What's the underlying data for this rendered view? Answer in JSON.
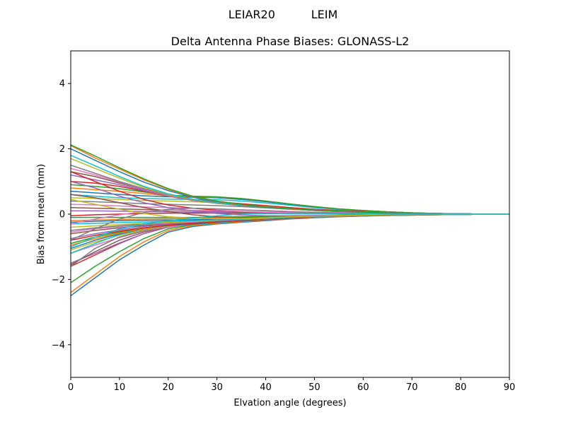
{
  "suptitle": "LEIAR20          LEIM",
  "chart_data": {
    "type": "line",
    "title": "Delta Antenna Phase Biases: GLONASS-L2",
    "xlabel": "Elvation angle (degrees)",
    "ylabel": "Bias from mean (mm)",
    "xlim": [
      0,
      90
    ],
    "ylim": [
      -5,
      5
    ],
    "xticks": [
      0,
      10,
      20,
      30,
      40,
      50,
      60,
      70,
      80,
      90
    ],
    "yticks": [
      -4,
      -2,
      0,
      2,
      4
    ],
    "ytick_labels": [
      "−4",
      "−2",
      "0",
      "2",
      "4"
    ],
    "grid": false,
    "legend": "none",
    "x": [
      0,
      5,
      10,
      15,
      20,
      25,
      30,
      35,
      40,
      45,
      50,
      55,
      60,
      65,
      70,
      75,
      80,
      85,
      90
    ],
    "color_cycle": [
      "#1f77b4",
      "#ff7f0e",
      "#2ca02c",
      "#d62728",
      "#9467bd",
      "#8c564b",
      "#e377c2",
      "#7f7f7f",
      "#bcbd22",
      "#17becf"
    ],
    "series": [
      {
        "values": [
          -2.5,
          -1.95,
          -1.4,
          -0.95,
          -0.55,
          -0.38,
          -0.3,
          -0.25,
          -0.2,
          -0.15,
          -0.11,
          -0.08,
          -0.06,
          -0.04,
          -0.03,
          -0.02,
          -0.01,
          0,
          0
        ]
      },
      {
        "values": [
          -2.4,
          -1.85,
          -1.3,
          -0.85,
          -0.5,
          -0.35,
          -0.28,
          -0.23,
          -0.18,
          -0.14,
          -0.1,
          -0.07,
          -0.05,
          -0.04,
          -0.03,
          -0.02,
          -0.01,
          0,
          0
        ]
      },
      {
        "values": [
          -2.1,
          -1.6,
          -1.15,
          -0.75,
          -0.45,
          -0.32,
          -0.26,
          -0.21,
          -0.17,
          -0.13,
          -0.1,
          -0.07,
          -0.05,
          -0.04,
          -0.03,
          -0.02,
          -0.01,
          0,
          0
        ]
      },
      {
        "values": [
          -1.6,
          -1.25,
          -0.9,
          -0.6,
          -0.38,
          -0.28,
          -0.23,
          -0.19,
          -0.15,
          -0.12,
          -0.09,
          -0.06,
          -0.05,
          -0.03,
          -0.02,
          -0.01,
          -0.01,
          0,
          0
        ]
      },
      {
        "values": [
          -1.5,
          -1.2,
          -0.88,
          -0.6,
          -0.4,
          -0.3,
          -0.24,
          -0.2,
          -0.16,
          -0.12,
          -0.09,
          -0.07,
          -0.05,
          -0.03,
          -0.02,
          -0.01,
          -0.01,
          0,
          0
        ]
      },
      {
        "values": [
          -1.55,
          -1.15,
          -0.8,
          -0.55,
          -0.38,
          -0.3,
          -0.25,
          -0.21,
          -0.17,
          -0.13,
          -0.1,
          -0.07,
          -0.05,
          -0.04,
          -0.03,
          -0.02,
          -0.01,
          0,
          0
        ]
      },
      {
        "values": [
          -1.2,
          -0.95,
          -0.72,
          -0.52,
          -0.38,
          -0.3,
          -0.25,
          -0.2,
          -0.16,
          -0.12,
          -0.09,
          -0.06,
          -0.05,
          -0.03,
          -0.02,
          -0.01,
          -0.01,
          0,
          0
        ]
      },
      {
        "values": [
          -1.6,
          -1.05,
          -0.7,
          -0.5,
          -0.36,
          -0.28,
          -0.24,
          -0.2,
          -0.16,
          -0.12,
          -0.09,
          -0.07,
          -0.05,
          -0.03,
          -0.02,
          -0.01,
          -0.01,
          0,
          0
        ]
      },
      {
        "values": [
          -1.1,
          -0.85,
          -0.65,
          -0.48,
          -0.36,
          -0.28,
          -0.23,
          -0.19,
          -0.15,
          -0.12,
          -0.09,
          -0.06,
          -0.05,
          -0.03,
          -0.02,
          -0.01,
          -0.01,
          0,
          0
        ]
      },
      {
        "values": [
          -1.2,
          -0.9,
          -0.62,
          -0.45,
          -0.34,
          -0.27,
          -0.22,
          -0.18,
          -0.14,
          -0.11,
          -0.08,
          -0.06,
          -0.04,
          -0.03,
          -0.02,
          -0.01,
          -0.01,
          0,
          0
        ]
      },
      {
        "values": [
          -1.05,
          -0.8,
          -0.6,
          -0.45,
          -0.35,
          -0.3,
          -0.25,
          -0.2,
          -0.16,
          -0.12,
          -0.09,
          -0.06,
          -0.05,
          -0.03,
          -0.02,
          -0.01,
          -0.01,
          0,
          0
        ]
      },
      {
        "values": [
          -0.95,
          -0.75,
          -0.58,
          -0.44,
          -0.34,
          -0.28,
          -0.23,
          -0.19,
          -0.15,
          -0.12,
          -0.09,
          -0.06,
          -0.05,
          -0.03,
          -0.02,
          -0.01,
          -0.01,
          0,
          0
        ]
      },
      {
        "values": [
          -0.9,
          -0.7,
          -0.55,
          -0.42,
          -0.33,
          -0.27,
          -0.22,
          -0.18,
          -0.14,
          -0.11,
          -0.08,
          -0.06,
          -0.04,
          -0.03,
          -0.02,
          -0.01,
          -0.01,
          0,
          0
        ]
      },
      {
        "values": [
          -0.8,
          -0.65,
          -0.52,
          -0.42,
          -0.34,
          -0.28,
          -0.23,
          -0.19,
          -0.15,
          -0.12,
          -0.09,
          -0.06,
          -0.05,
          -0.03,
          -0.02,
          -0.01,
          -0.01,
          0,
          0
        ]
      },
      {
        "values": [
          -0.75,
          -0.6,
          -0.48,
          -0.38,
          -0.3,
          -0.25,
          -0.21,
          -0.17,
          -0.14,
          -0.11,
          -0.08,
          -0.06,
          -0.04,
          -0.03,
          -0.02,
          -0.01,
          -0.01,
          0,
          0
        ]
      },
      {
        "values": [
          -0.6,
          -0.5,
          -0.42,
          -0.35,
          -0.29,
          -0.25,
          -0.21,
          -0.17,
          -0.14,
          -0.11,
          -0.08,
          -0.06,
          -0.04,
          -0.03,
          -0.02,
          -0.01,
          -0.01,
          0,
          0
        ]
      },
      {
        "values": [
          -0.55,
          -0.45,
          -0.38,
          -0.32,
          -0.28,
          -0.24,
          -0.2,
          -0.16,
          -0.13,
          -0.1,
          -0.08,
          -0.06,
          -0.04,
          -0.03,
          -0.02,
          -0.01,
          -0.01,
          0,
          0
        ]
      },
      {
        "values": [
          -0.5,
          -0.42,
          -0.36,
          -0.3,
          -0.26,
          -0.22,
          -0.19,
          -0.16,
          -0.13,
          -0.1,
          -0.08,
          -0.06,
          -0.04,
          -0.03,
          -0.02,
          -0.01,
          -0.01,
          0,
          0
        ]
      },
      {
        "values": [
          -0.4,
          -0.36,
          -0.32,
          -0.28,
          -0.25,
          -0.22,
          -0.19,
          -0.16,
          -0.13,
          -0.1,
          -0.08,
          -0.06,
          -0.04,
          -0.03,
          -0.02,
          -0.01,
          -0.01,
          0,
          0
        ]
      },
      {
        "values": [
          -0.3,
          -0.28,
          -0.26,
          -0.24,
          -0.22,
          -0.2,
          -0.18,
          -0.15,
          -0.12,
          -0.1,
          -0.07,
          -0.05,
          -0.04,
          -0.03,
          -0.02,
          -0.01,
          -0.01,
          0,
          0
        ]
      },
      {
        "values": [
          -0.25,
          -0.22,
          -0.2,
          -0.19,
          -0.18,
          -0.17,
          -0.15,
          -0.13,
          -0.11,
          -0.09,
          -0.07,
          -0.05,
          -0.04,
          -0.03,
          -0.02,
          -0.01,
          -0.01,
          0,
          0
        ]
      },
      {
        "values": [
          -0.2,
          -0.18,
          -0.16,
          -0.15,
          -0.14,
          -0.13,
          -0.12,
          -0.1,
          -0.09,
          -0.07,
          -0.05,
          -0.04,
          -0.03,
          -0.02,
          -0.01,
          -0.01,
          0,
          0,
          0
        ]
      },
      {
        "values": [
          -0.1,
          -0.1,
          -0.1,
          -0.1,
          -0.1,
          -0.1,
          -0.09,
          -0.08,
          -0.07,
          -0.06,
          -0.05,
          -0.04,
          -0.03,
          -0.02,
          -0.01,
          -0.01,
          0,
          0,
          0
        ]
      },
      {
        "values": [
          -0.05,
          -0.02,
          0,
          0.02,
          0.03,
          0.03,
          0.03,
          0.02,
          0.02,
          0.01,
          0.01,
          0.01,
          0,
          0,
          0,
          0,
          0,
          0,
          0
        ]
      },
      {
        "values": [
          0.1,
          0.1,
          0.09,
          0.08,
          0.07,
          0.06,
          0.05,
          0.04,
          0.03,
          0.02,
          0.02,
          0.01,
          0.01,
          0,
          0,
          0,
          0,
          0,
          0
        ]
      },
      {
        "values": [
          0.2,
          0.18,
          0.16,
          0.14,
          0.12,
          0.1,
          0.08,
          0.06,
          0.05,
          0.04,
          0.03,
          0.02,
          0.01,
          0.01,
          0,
          0,
          0,
          0,
          0
        ]
      },
      {
        "values": [
          0.3,
          0.28,
          0.25,
          0.22,
          0.2,
          0.18,
          0.16,
          0.13,
          0.11,
          0.08,
          0.06,
          0.05,
          0.03,
          0.02,
          0.01,
          0.01,
          0,
          0,
          0
        ]
      },
      {
        "values": [
          0.4,
          0.38,
          0.35,
          0.32,
          0.3,
          0.28,
          0.26,
          0.23,
          0.19,
          0.15,
          0.11,
          0.08,
          0.06,
          0.04,
          0.03,
          0.02,
          0.01,
          0,
          0
        ]
      },
      {
        "values": [
          0.5,
          0.48,
          0.45,
          0.42,
          0.4,
          0.38,
          0.35,
          0.31,
          0.26,
          0.2,
          0.15,
          0.11,
          0.08,
          0.05,
          0.03,
          0.02,
          0.01,
          0,
          0
        ]
      },
      {
        "values": [
          0.6,
          0.55,
          0.5,
          0.48,
          0.46,
          0.45,
          0.44,
          0.4,
          0.34,
          0.27,
          0.2,
          0.14,
          0.1,
          0.07,
          0.04,
          0.02,
          0.01,
          0,
          0
        ]
      },
      {
        "values": [
          0.7,
          0.65,
          0.6,
          0.56,
          0.53,
          0.52,
          0.5,
          0.45,
          0.38,
          0.3,
          0.22,
          0.16,
          0.11,
          0.07,
          0.04,
          0.02,
          0.01,
          0,
          0
        ]
      },
      {
        "values": [
          0.8,
          0.75,
          0.7,
          0.63,
          0.56,
          0.54,
          0.52,
          0.48,
          0.4,
          0.31,
          0.23,
          0.16,
          0.11,
          0.07,
          0.04,
          0.02,
          0.01,
          0,
          0
        ]
      },
      {
        "values": [
          0.9,
          0.85,
          0.78,
          0.68,
          0.58,
          0.55,
          0.53,
          0.48,
          0.4,
          0.31,
          0.23,
          0.16,
          0.11,
          0.07,
          0.04,
          0.02,
          0.01,
          0,
          0
        ]
      },
      {
        "values": [
          1.0,
          0.95,
          0.85,
          0.7,
          0.55,
          0.45,
          0.38,
          0.32,
          0.26,
          0.2,
          0.15,
          0.11,
          0.08,
          0.05,
          0.03,
          0.02,
          0.01,
          0,
          0
        ]
      },
      {
        "values": [
          1.2,
          1.05,
          0.9,
          0.72,
          0.55,
          0.42,
          0.34,
          0.28,
          0.22,
          0.17,
          0.13,
          0.1,
          0.07,
          0.05,
          0.03,
          0.02,
          0.01,
          0,
          0
        ]
      },
      {
        "values": [
          1.3,
          1.15,
          0.95,
          0.75,
          0.55,
          0.42,
          0.33,
          0.27,
          0.21,
          0.16,
          0.12,
          0.09,
          0.06,
          0.04,
          0.03,
          0.02,
          0.01,
          0,
          0
        ]
      },
      {
        "values": [
          1.4,
          1.2,
          0.98,
          0.76,
          0.56,
          0.42,
          0.33,
          0.26,
          0.2,
          0.15,
          0.11,
          0.08,
          0.06,
          0.04,
          0.03,
          0.02,
          0.01,
          0,
          0
        ]
      },
      {
        "values": [
          1.5,
          1.25,
          1.0,
          0.78,
          0.58,
          0.43,
          0.33,
          0.26,
          0.2,
          0.15,
          0.11,
          0.08,
          0.06,
          0.04,
          0.03,
          0.02,
          0.01,
          0,
          0
        ]
      },
      {
        "values": [
          1.7,
          1.4,
          1.1,
          0.82,
          0.6,
          0.45,
          0.34,
          0.27,
          0.21,
          0.16,
          0.12,
          0.09,
          0.06,
          0.04,
          0.03,
          0.02,
          0.01,
          0,
          0
        ]
      },
      {
        "values": [
          1.8,
          1.48,
          1.15,
          0.85,
          0.62,
          0.46,
          0.35,
          0.27,
          0.21,
          0.16,
          0.12,
          0.09,
          0.06,
          0.04,
          0.03,
          0.02,
          0.01,
          0,
          0
        ]
      },
      {
        "values": [
          2.0,
          1.65,
          1.3,
          0.98,
          0.72,
          0.52,
          0.38,
          0.28,
          0.21,
          0.16,
          0.12,
          0.09,
          0.06,
          0.04,
          0.03,
          0.02,
          0.01,
          0,
          0
        ]
      },
      {
        "values": [
          2.1,
          1.72,
          1.38,
          1.05,
          0.76,
          0.54,
          0.39,
          0.29,
          0.22,
          0.16,
          0.12,
          0.09,
          0.06,
          0.04,
          0.03,
          0.02,
          0.01,
          0,
          0
        ]
      },
      {
        "values": [
          2.12,
          1.78,
          1.42,
          1.08,
          0.78,
          0.55,
          0.4,
          0.3,
          0.22,
          0.17,
          0.12,
          0.09,
          0.06,
          0.04,
          0.03,
          0.02,
          0.01,
          0,
          0
        ]
      },
      {
        "values": [
          1.3,
          1.0,
          0.7,
          0.45,
          0.28,
          0.18,
          0.12,
          0.08,
          0.05,
          0.04,
          0.03,
          0.02,
          0.01,
          0.01,
          0,
          0,
          0,
          0,
          0
        ]
      },
      {
        "values": [
          1.0,
          0.8,
          0.55,
          0.35,
          0.2,
          0.1,
          0.02,
          -0.03,
          -0.05,
          -0.05,
          -0.04,
          -0.03,
          -0.02,
          -0.01,
          -0.01,
          0,
          0,
          0,
          0
        ]
      },
      {
        "values": [
          0.6,
          0.5,
          0.35,
          0.2,
          0.08,
          -0.02,
          -0.08,
          -0.1,
          -0.1,
          -0.08,
          -0.06,
          -0.04,
          -0.03,
          -0.02,
          -0.01,
          0,
          0,
          0,
          0
        ]
      },
      {
        "values": [
          -0.3,
          -0.15,
          -0.02,
          0.08,
          0.12,
          0.12,
          0.1,
          0.08,
          0.06,
          0.04,
          0.03,
          0.02,
          0.01,
          0.01,
          0,
          0,
          0,
          0,
          0
        ]
      },
      {
        "values": [
          -0.8,
          -0.45,
          -0.15,
          0.05,
          0.15,
          0.18,
          0.16,
          0.13,
          0.1,
          0.07,
          0.05,
          0.03,
          0.02,
          0.01,
          0.01,
          0,
          0,
          0,
          0
        ]
      },
      {
        "values": [
          0.45,
          0.3,
          0.15,
          0.02,
          -0.08,
          -0.12,
          -0.14,
          -0.13,
          -0.11,
          -0.08,
          -0.06,
          -0.04,
          -0.03,
          -0.02,
          -0.01,
          0,
          0,
          0,
          0
        ]
      },
      {
        "values": [
          -1.0,
          -0.7,
          -0.45,
          -0.3,
          -0.2,
          -0.12,
          -0.05,
          0.0,
          0.02,
          0.02,
          0.02,
          0.01,
          0.01,
          0,
          0,
          0,
          0,
          0,
          0
        ]
      }
    ]
  }
}
